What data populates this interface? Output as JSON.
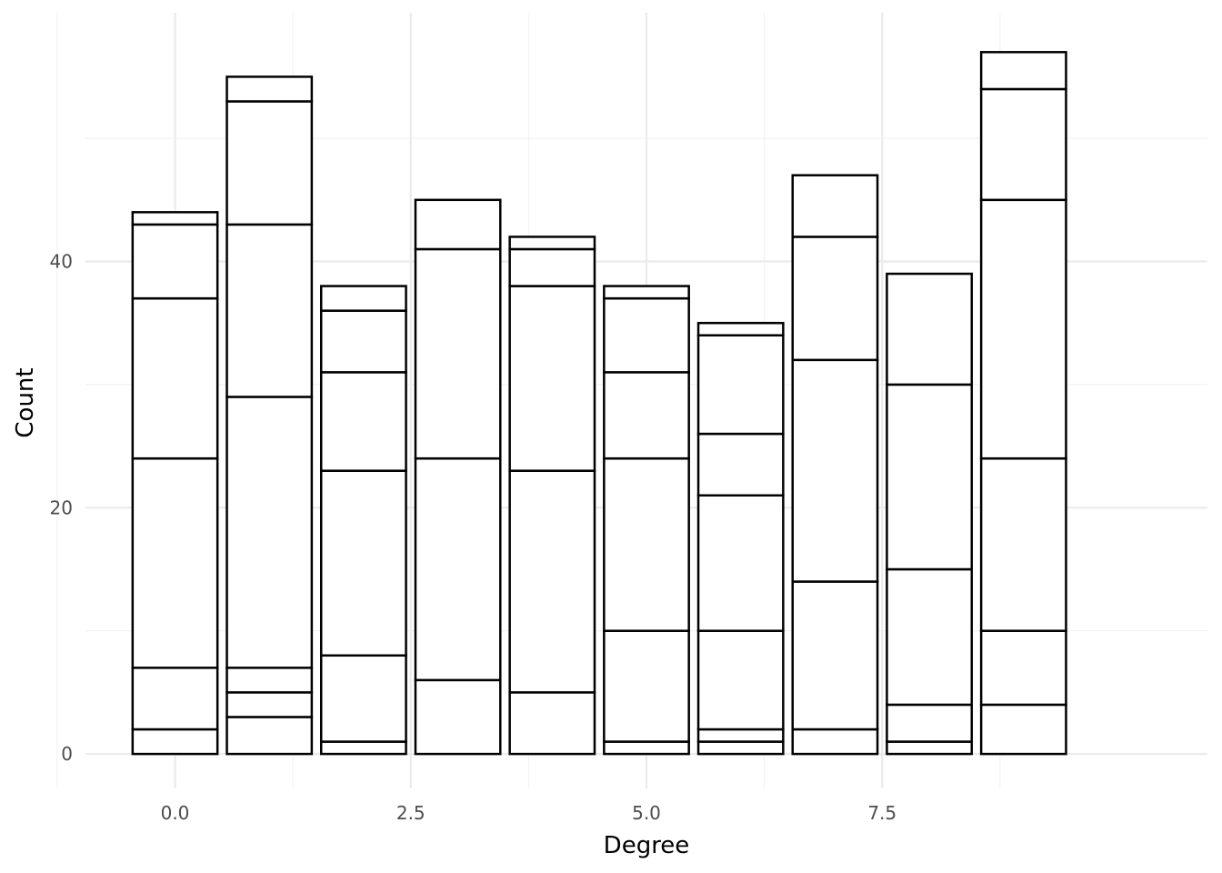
{
  "chart_data": {
    "type": "bar",
    "stacked": true,
    "xlabel": "Degree",
    "ylabel": "Count",
    "x_ticks": [
      "0.0",
      "2.5",
      "5.0",
      "7.5"
    ],
    "y_ticks": [
      "0",
      "20",
      "40"
    ],
    "xlim": [
      -0.95,
      10.95
    ],
    "ylim": [
      -2.8,
      60.2
    ],
    "grid": true,
    "bar_fill": "#ffffff",
    "bar_stroke": "#000000",
    "bars": [
      {
        "x": 0,
        "boundaries": [
          2,
          7,
          24,
          37,
          43,
          44
        ]
      },
      {
        "x": 1,
        "boundaries": [
          3,
          5,
          7,
          29,
          43,
          53,
          55
        ]
      },
      {
        "x": 2,
        "boundaries": [
          1,
          8,
          23,
          31,
          36,
          38
        ]
      },
      {
        "x": 3,
        "boundaries": [
          6,
          24,
          41,
          45
        ]
      },
      {
        "x": 4,
        "boundaries": [
          5,
          23,
          38,
          41,
          42
        ]
      },
      {
        "x": 5,
        "boundaries": [
          1,
          10,
          24,
          31,
          37,
          38
        ]
      },
      {
        "x": 6,
        "boundaries": [
          1,
          2,
          10,
          21,
          26,
          34,
          35
        ]
      },
      {
        "x": 7,
        "boundaries": [
          2,
          14,
          32,
          42,
          47
        ]
      },
      {
        "x": 8,
        "boundaries": [
          1,
          4,
          15,
          30,
          39
        ]
      },
      {
        "x": 9,
        "boundaries": [
          4,
          10,
          24,
          45,
          54,
          57
        ]
      }
    ]
  }
}
